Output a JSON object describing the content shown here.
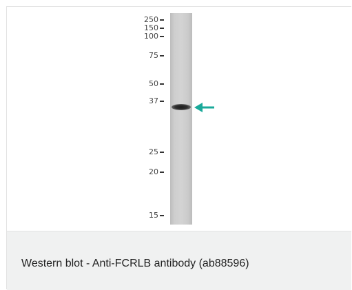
{
  "blot": {
    "markers": [
      "250",
      "150",
      "100",
      "75",
      "50",
      "37",
      "25",
      "20",
      "15"
    ],
    "arrow_color": "#1aa99a"
  },
  "caption": "Western blot - Anti-FCRLB antibody (ab88596)"
}
